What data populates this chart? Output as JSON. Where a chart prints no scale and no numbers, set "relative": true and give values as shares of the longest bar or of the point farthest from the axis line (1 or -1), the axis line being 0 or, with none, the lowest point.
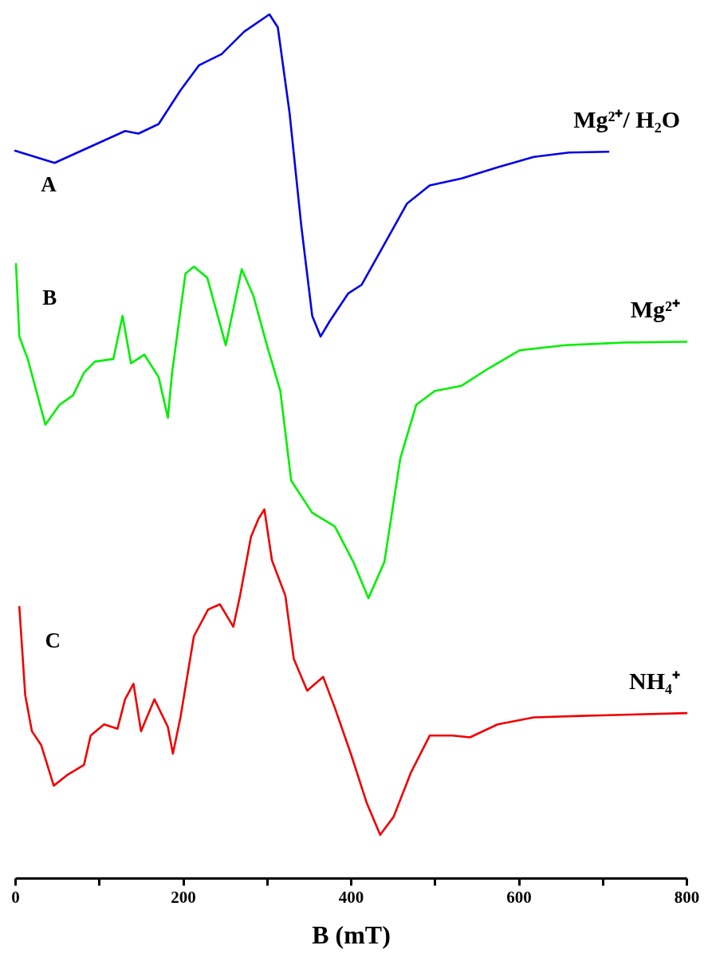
{
  "chart_data": {
    "type": "line",
    "relative": true,
    "xlabel": "B (mT)",
    "xlim": [
      0,
      800
    ],
    "xticks": [
      0,
      {
        "value": 100,
        "label": null
      },
      200,
      {
        "value": 300,
        "label": null
      },
      400,
      {
        "value": 500,
        "label": null
      },
      600,
      {
        "value": 700,
        "label": null
      },
      800
    ],
    "annotations": [
      "A",
      "B",
      "C"
    ],
    "series": [
      {
        "name": "Mg²⁺/ H₂O",
        "color": "#0000e6",
        "x": [
          0,
          47,
          131,
          147,
          171,
          197,
          219,
          246,
          273,
          303,
          313,
          327,
          341,
          354,
          364,
          375,
          397,
          413,
          440,
          467,
          494,
          532,
          575,
          618,
          660,
          707
        ],
        "values": [
          0.842,
          0.828,
          0.865,
          0.862,
          0.873,
          0.912,
          0.941,
          0.954,
          0.98,
          1.0,
          0.985,
          0.886,
          0.755,
          0.651,
          0.627,
          0.645,
          0.677,
          0.687,
          0.734,
          0.781,
          0.802,
          0.81,
          0.823,
          0.835,
          0.84,
          0.841
        ]
      },
      {
        "name": "Mg²⁺",
        "color": "#00f000",
        "x": [
          1,
          5,
          15,
          36,
          53,
          69,
          82,
          95,
          117,
          128,
          138,
          154,
          171,
          182,
          187,
          203,
          213,
          229,
          251,
          270,
          284,
          300,
          316,
          329,
          354,
          381,
          403,
          421,
          440,
          459,
          478,
          500,
          532,
          564,
          601,
          656,
          725,
          800
        ],
        "values": [
          0.711,
          0.627,
          0.601,
          0.525,
          0.548,
          0.559,
          0.585,
          0.598,
          0.601,
          0.651,
          0.596,
          0.606,
          0.58,
          0.533,
          0.585,
          0.7,
          0.708,
          0.695,
          0.617,
          0.705,
          0.674,
          0.617,
          0.564,
          0.46,
          0.423,
          0.407,
          0.366,
          0.324,
          0.366,
          0.486,
          0.548,
          0.564,
          0.57,
          0.59,
          0.611,
          0.617,
          0.62,
          0.621
        ]
      },
      {
        "name": "NH₄⁺",
        "color": "#f00000",
        "x": [
          5,
          12,
          20,
          31,
          46,
          63,
          82,
          90,
          106,
          122,
          131,
          141,
          150,
          166,
          182,
          188,
          197,
          213,
          230,
          244,
          260,
          268,
          281,
          290,
          297,
          306,
          322,
          332,
          348,
          367,
          381,
          400,
          419,
          435,
          451,
          472,
          494,
          521,
          542,
          575,
          618,
          682,
          800
        ],
        "values": [
          0.314,
          0.212,
          0.17,
          0.154,
          0.107,
          0.12,
          0.131,
          0.165,
          0.178,
          0.173,
          0.207,
          0.225,
          0.17,
          0.207,
          0.175,
          0.144,
          0.186,
          0.28,
          0.311,
          0.317,
          0.291,
          0.327,
          0.395,
          0.416,
          0.427,
          0.368,
          0.327,
          0.254,
          0.217,
          0.233,
          0.197,
          0.144,
          0.087,
          0.05,
          0.071,
          0.123,
          0.165,
          0.165,
          0.163,
          0.178,
          0.186,
          0.188,
          0.191
        ]
      }
    ]
  }
}
